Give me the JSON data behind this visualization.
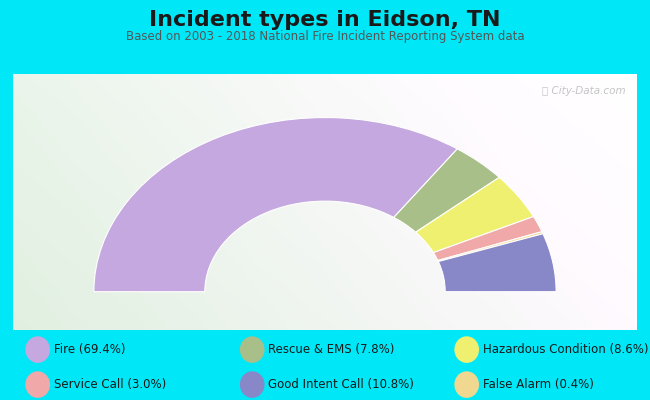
{
  "title": "Incident types in Eidson, TN",
  "subtitle": "Based on 2003 - 2018 National Fire Incident Reporting System data",
  "background_outer": "#00e8f8",
  "background_chart_topleft": "#dff0df",
  "background_chart_topright": "#f0f0f8",
  "watermark": "ⓘ City-Data.com",
  "draw_order": [
    "Fire",
    "Rescue & EMS",
    "Hazardous Condition",
    "Service Call",
    "False Alarm",
    "Good Intent Call"
  ],
  "segments": [
    {
      "label": "Fire",
      "pct": 69.4,
      "color": "#c4a8df"
    },
    {
      "label": "Rescue & EMS",
      "pct": 7.8,
      "color": "#a8bf8a"
    },
    {
      "label": "Hazardous Condition",
      "pct": 8.6,
      "color": "#f0f070"
    },
    {
      "label": "Service Call",
      "pct": 3.0,
      "color": "#f0a8a8"
    },
    {
      "label": "False Alarm",
      "pct": 0.4,
      "color": "#f0d890"
    },
    {
      "label": "Good Intent Call",
      "pct": 10.8,
      "color": "#8888c8"
    }
  ],
  "legend_rows": [
    [
      {
        "label": "Fire (69.4%)",
        "color": "#c4a8df"
      },
      {
        "label": "Rescue & EMS (7.8%)",
        "color": "#a8bf8a"
      },
      {
        "label": "Hazardous Condition (8.6%)",
        "color": "#f0f070"
      }
    ],
    [
      {
        "label": "Service Call (3.0%)",
        "color": "#f0a8a8"
      },
      {
        "label": "Good Intent Call (10.8%)",
        "color": "#8888c8"
      },
      {
        "label": "False Alarm (0.4%)",
        "color": "#f0d890"
      }
    ]
  ],
  "title_fontsize": 16,
  "subtitle_fontsize": 8.5,
  "legend_fontsize": 8.5,
  "outer_r": 1.0,
  "inner_r": 0.52
}
